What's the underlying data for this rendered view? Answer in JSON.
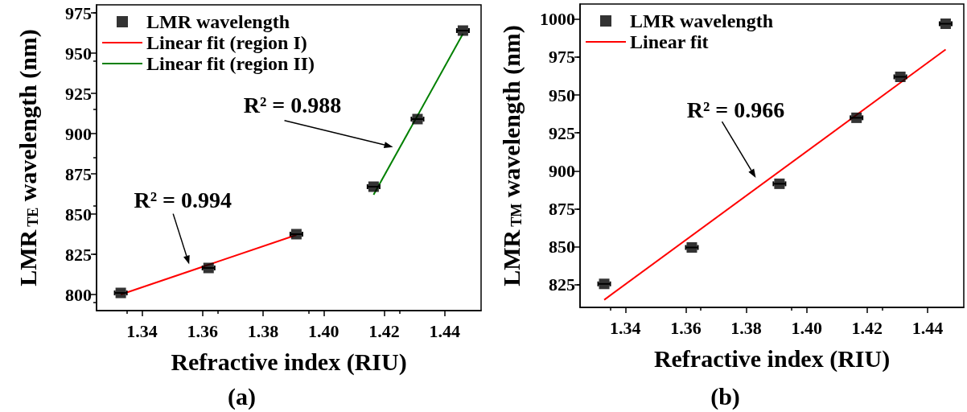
{
  "chart_data": [
    {
      "type": "scatter",
      "title": "(a)",
      "xlabel": "Refractive index (RIU)",
      "ylabel": "LMR$_{TE}$ wavelength (nm)",
      "xlim": [
        1.325,
        1.452
      ],
      "xticks": [
        1.34,
        1.36,
        1.38,
        {
          "value": 1.4,
          "label": "1.40"
        },
        1.42,
        1.44
      ],
      "ylim": [
        790,
        980
      ],
      "yticks": [
        800,
        825,
        850,
        875,
        900,
        925,
        950,
        975
      ],
      "legend": "top left",
      "grid": false,
      "series": [
        {
          "name": "LMR wavelength",
          "color": "#000000",
          "marker": "square",
          "x": [
            1.333,
            1.362,
            1.391,
            1.4165,
            1.431,
            1.446
          ],
          "values": [
            801,
            816.5,
            837.5,
            867,
            909,
            964
          ],
          "xerrors": [
            0.002,
            0.002,
            0.002,
            0.002,
            0.002,
            0.002
          ]
        },
        {
          "name": "Linear fit (region I)",
          "type": "line",
          "color": "#ff0000",
          "marker": "none",
          "x": [
            1.333,
            1.391
          ],
          "values": [
            800,
            837
          ]
        },
        {
          "name": "Linear fit (region II)",
          "type": "line",
          "color": "#008000",
          "marker": "none",
          "x": [
            1.4165,
            1.446
          ],
          "values": [
            862,
            962
          ]
        }
      ],
      "annotations": [
        "R² = 0.994",
        "R² = 0.988"
      ]
    },
    {
      "type": "scatter",
      "title": "(b)",
      "xlabel": "Refractive index (RIU)",
      "ylabel": "LMR$_{TM}$ wavelength (nm)",
      "xlim": [
        1.325,
        1.452
      ],
      "xticks": [
        1.34,
        1.36,
        1.38,
        {
          "value": 1.4,
          "label": "1.40"
        },
        1.42,
        1.44
      ],
      "ylim": [
        810,
        1010
      ],
      "yticks": [
        825,
        850,
        875,
        900,
        925,
        950,
        975,
        1000
      ],
      "legend": "top left",
      "grid": false,
      "series": [
        {
          "name": "LMR wavelength",
          "color": "#000000",
          "marker": "square",
          "x": [
            1.333,
            1.362,
            1.391,
            1.4165,
            1.431,
            1.446
          ],
          "values": [
            825.5,
            849.5,
            891.5,
            935,
            962,
            997
          ],
          "xerrors": [
            0.002,
            0.002,
            0.002,
            0.002,
            0.002,
            0.002
          ]
        },
        {
          "name": "Linear fit",
          "type": "line",
          "color": "#ff0000",
          "marker": "none",
          "x": [
            1.333,
            1.446
          ],
          "values": [
            815,
            980
          ]
        }
      ],
      "annotations": [
        "R² = 0.966"
      ]
    }
  ]
}
